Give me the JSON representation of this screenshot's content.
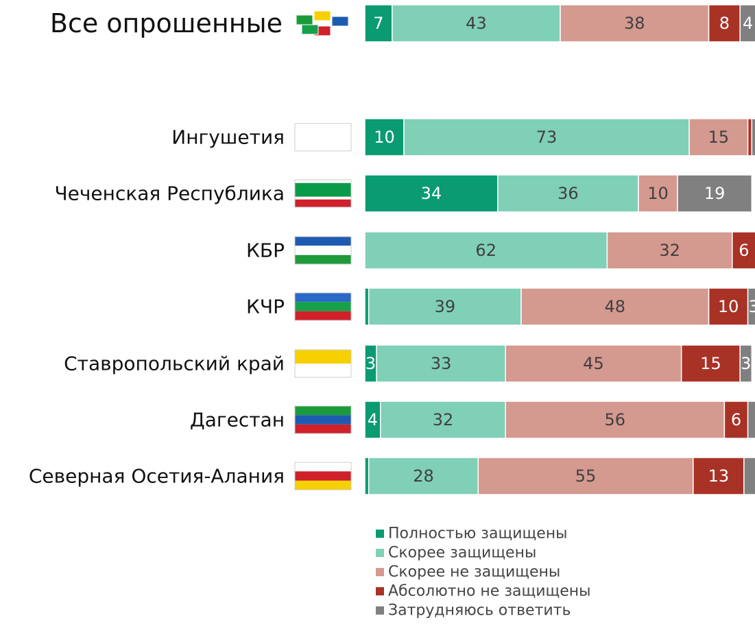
{
  "chart_data": {
    "type": "stacked-barh",
    "categories": [
      "Все опрошенные",
      "Ингушетия",
      "Чеченская Республика",
      "КБР",
      "КЧР",
      "Ставропольский край",
      "Дагестан",
      "Северная Осетия-Алания"
    ],
    "xlim": [
      0,
      100
    ],
    "series": [
      {
        "name": "Полностью защищены",
        "color": "#0a9b72",
        "values": [
          7,
          10,
          34,
          0,
          1,
          3,
          4,
          1
        ],
        "value_labels": [
          7,
          10,
          34,
          null,
          null,
          3,
          4,
          null
        ]
      },
      {
        "name": "Скорее защищены",
        "color": "#80cfb7",
        "values": [
          43,
          73,
          36,
          62,
          39,
          33,
          32,
          28
        ],
        "value_labels": [
          43,
          73,
          36,
          62,
          39,
          33,
          32,
          28
        ]
      },
      {
        "name": "Скорее не защищены",
        "color": "#d4998f",
        "values": [
          38,
          15,
          10,
          32,
          48,
          45,
          56,
          55
        ],
        "value_labels": [
          38,
          15,
          10,
          32,
          48,
          45,
          56,
          55
        ]
      },
      {
        "name": "Абсолютно не защищены",
        "color": "#a93226",
        "values": [
          8,
          1,
          0,
          6,
          10,
          15,
          6,
          13
        ],
        "value_labels": [
          8,
          null,
          null,
          6,
          10,
          15,
          6,
          13
        ]
      },
      {
        "name": "Затрудняюсь ответить",
        "color": "#808080",
        "values": [
          4,
          1,
          19,
          0,
          3,
          3,
          2,
          3
        ],
        "value_labels": [
          4,
          null,
          19,
          null,
          3,
          3,
          null,
          null
        ]
      }
    ],
    "legend": "bottom"
  }
}
